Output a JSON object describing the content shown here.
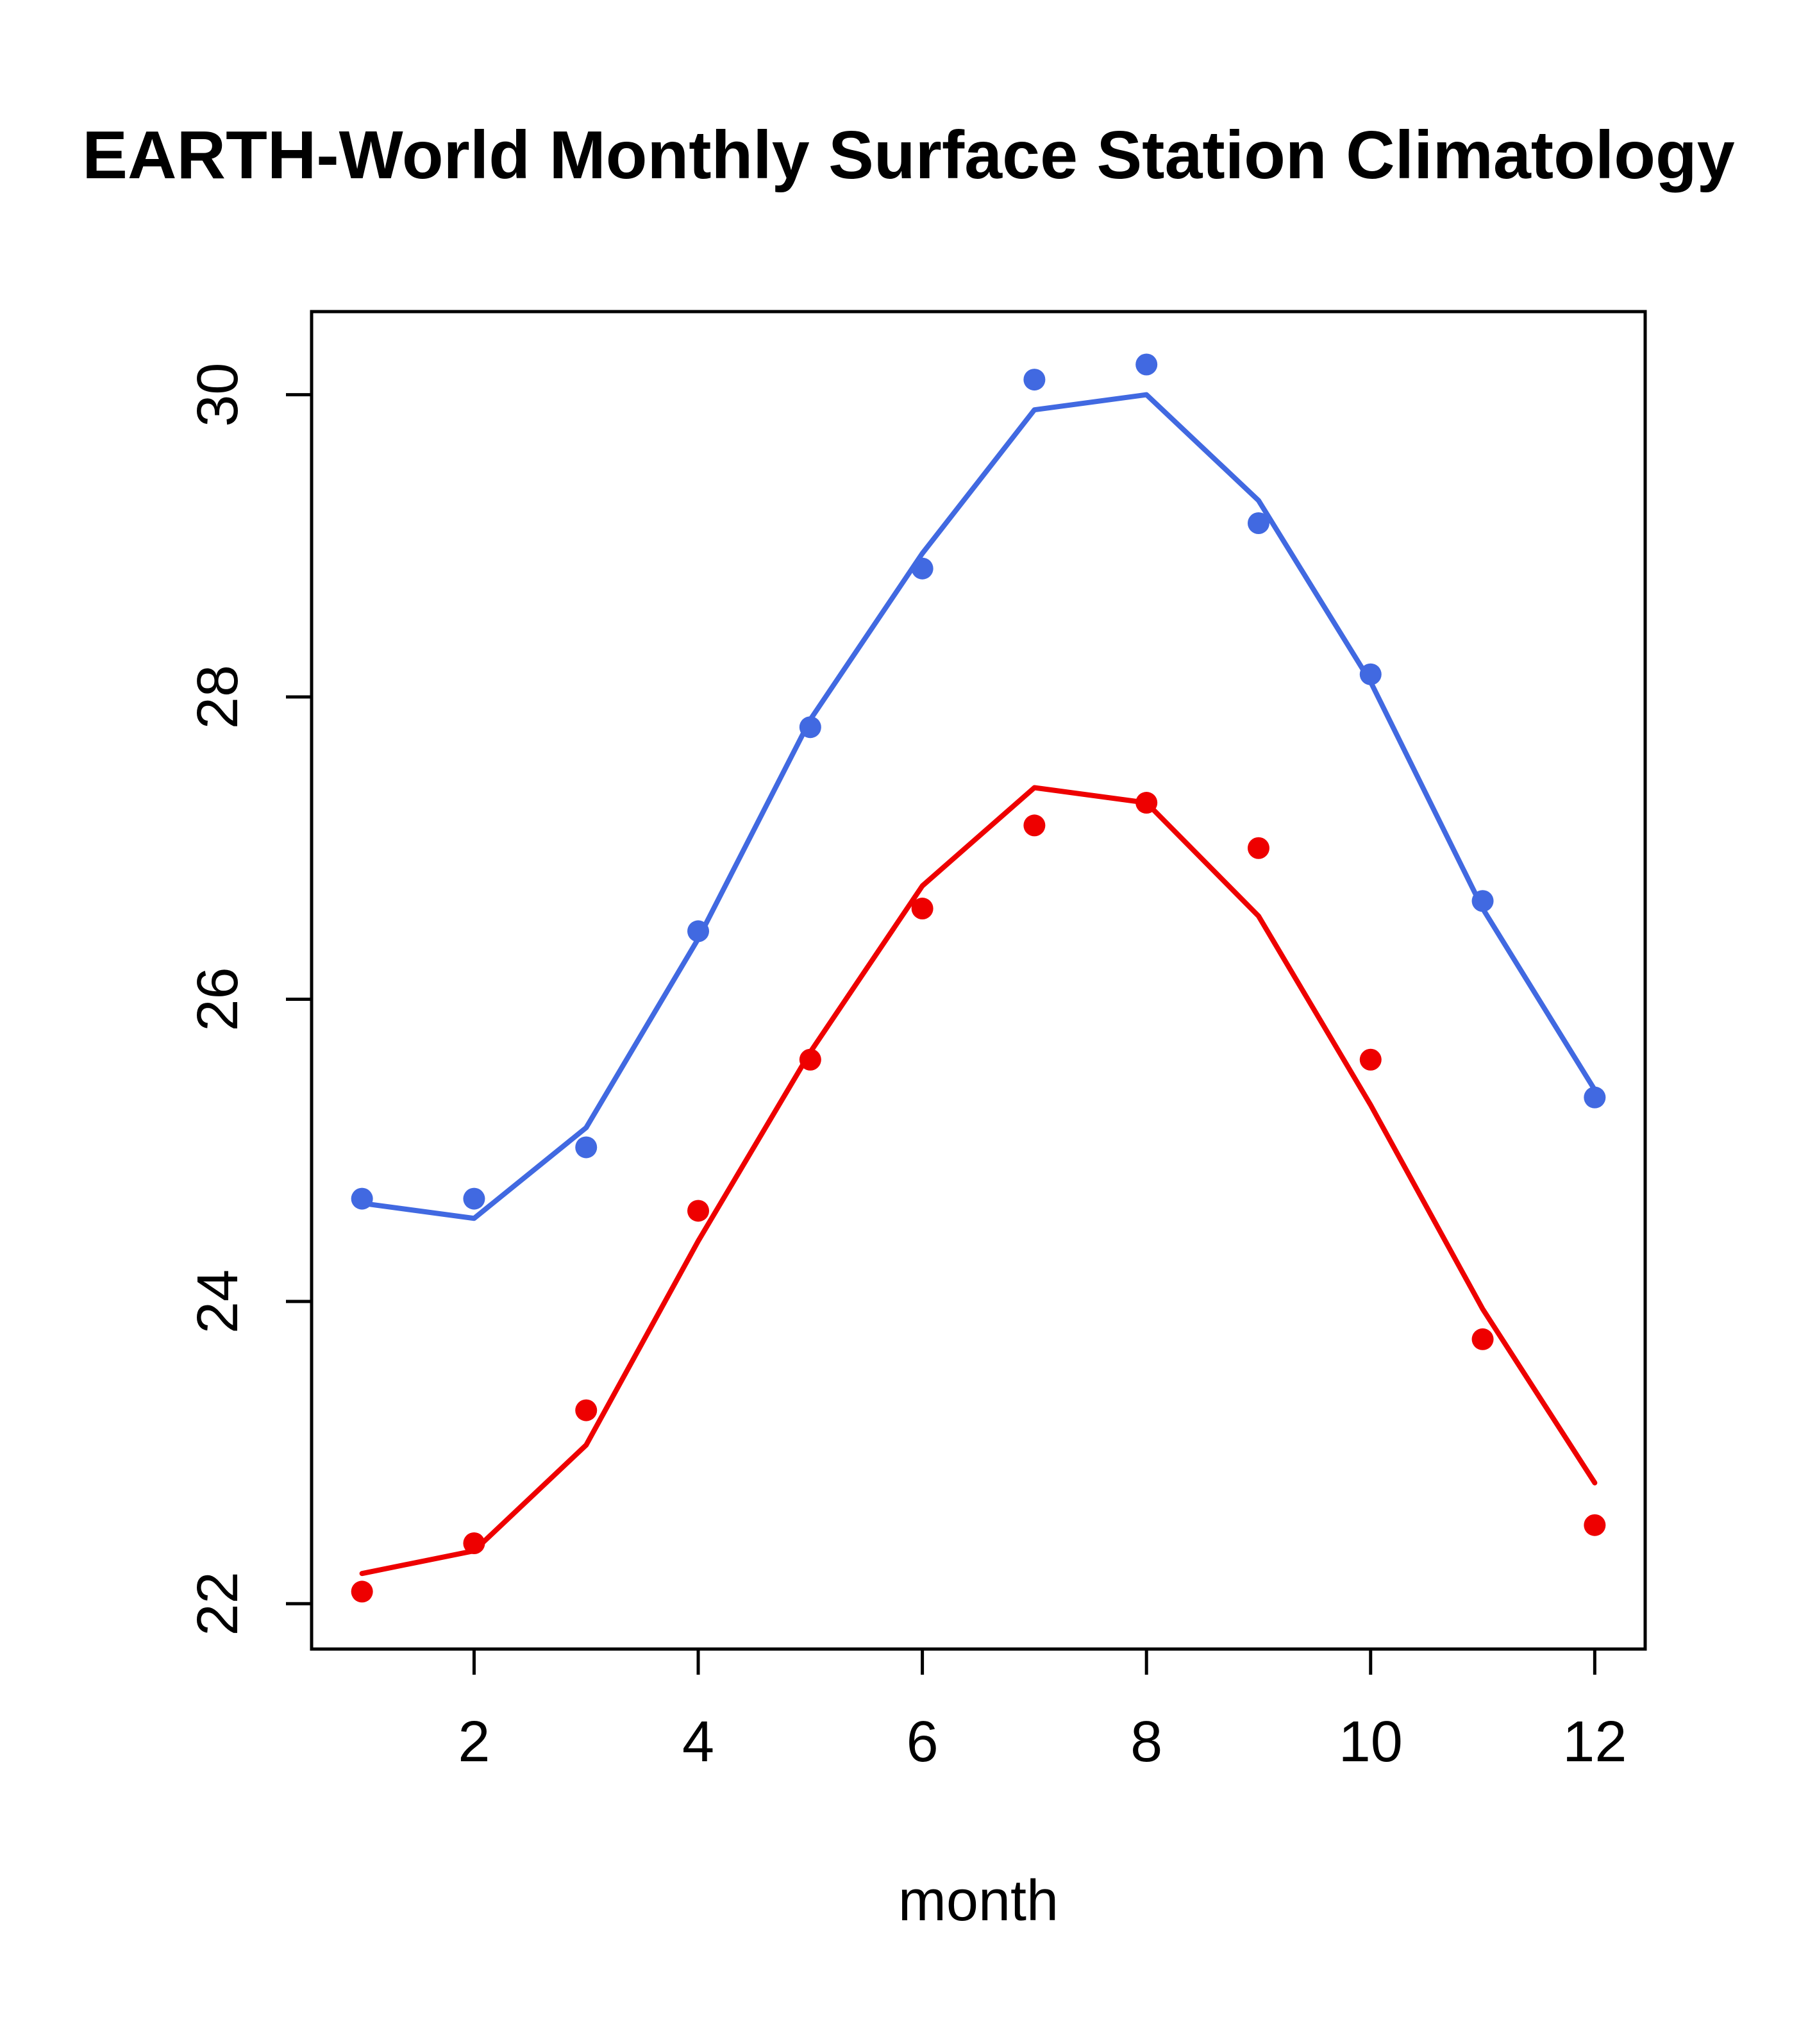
{
  "chart_data": {
    "type": "line",
    "title": "EARTH-World Monthly Surface Station Climatology",
    "xlabel": "month",
    "ylabel": "",
    "x": [
      1,
      2,
      3,
      4,
      5,
      6,
      7,
      8,
      9,
      10,
      11,
      12
    ],
    "xticks": [
      2,
      4,
      6,
      8,
      10,
      12
    ],
    "yticks": [
      22,
      24,
      26,
      28,
      30
    ],
    "xlim": [
      0.55,
      12.45
    ],
    "ylim": [
      21.7,
      30.55
    ],
    "grid": false,
    "legend": "none",
    "colors": {
      "blue_series": "#4169E1",
      "red_series": "#EE0000",
      "axis": "#000000"
    },
    "series": [
      {
        "name": "blue-line",
        "draw": "line",
        "color": "#4169E1",
        "values": [
          24.65,
          24.55,
          25.15,
          26.4,
          27.85,
          28.95,
          29.9,
          30.0,
          29.3,
          28.1,
          26.6,
          25.4
        ]
      },
      {
        "name": "red-line",
        "draw": "line",
        "color": "#EE0000",
        "values": [
          22.2,
          22.35,
          23.05,
          24.4,
          25.65,
          26.75,
          27.4,
          27.3,
          26.55,
          25.3,
          23.95,
          22.8
        ]
      },
      {
        "name": "blue-points",
        "draw": "points",
        "color": "#4169E1",
        "values": [
          24.68,
          24.68,
          25.02,
          26.45,
          27.8,
          28.85,
          30.1,
          30.2,
          29.15,
          28.15,
          26.65,
          25.35
        ]
      },
      {
        "name": "red-points",
        "draw": "points",
        "color": "#EE0000",
        "values": [
          22.08,
          22.4,
          23.28,
          24.6,
          25.6,
          26.6,
          27.15,
          27.3,
          27.0,
          25.6,
          23.75,
          22.52
        ]
      }
    ]
  }
}
